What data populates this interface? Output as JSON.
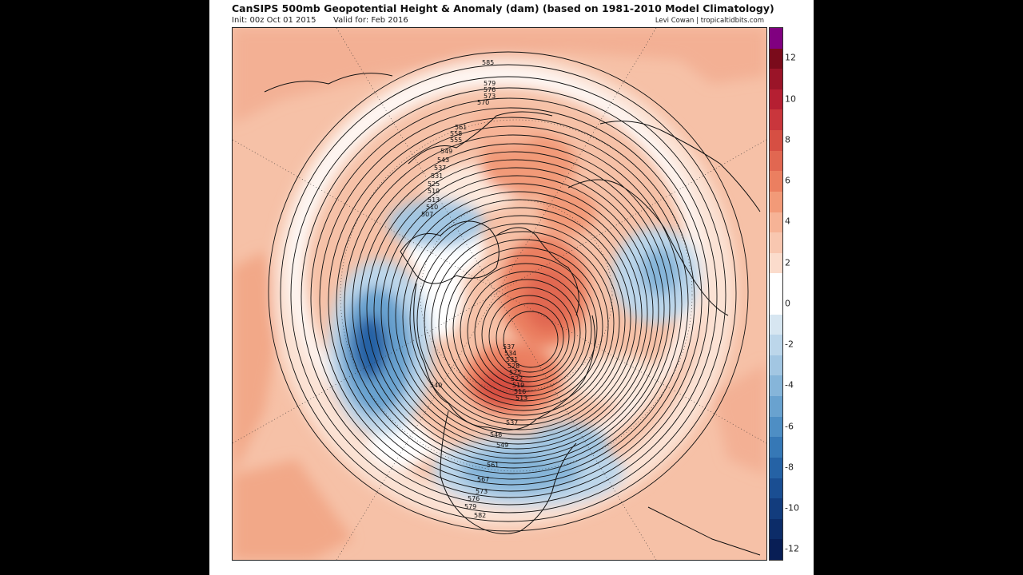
{
  "header": {
    "title": "CanSIPS 500mb Geopotential Height & Anomaly (dam) (based on 1981-2010 Model Climatology)",
    "init": "Init: 00z Oct 01 2015",
    "valid": "Valid for: Feb 2016",
    "credit": "Levi Cowan | tropicaltidbits.com"
  },
  "colorbar": {
    "units": "dam",
    "segments": [
      {
        "value": 13,
        "color": "#800080"
      },
      {
        "value": 12,
        "color": "#7a0b1b"
      },
      {
        "value": 11,
        "color": "#9a1428"
      },
      {
        "value": 10,
        "color": "#b51f32"
      },
      {
        "value": 9,
        "color": "#c9363c"
      },
      {
        "value": 8,
        "color": "#d64f43"
      },
      {
        "value": 7,
        "color": "#e16751"
      },
      {
        "value": 6,
        "color": "#eb7f60"
      },
      {
        "value": 5,
        "color": "#f29a78"
      },
      {
        "value": 4,
        "color": "#f6b396"
      },
      {
        "value": 3,
        "color": "#f8c7b0"
      },
      {
        "value": 2,
        "color": "#fbdccc"
      },
      {
        "value": 1,
        "color": "#ffffff"
      },
      {
        "value": 0,
        "color": "#ffffff"
      },
      {
        "value": -1,
        "color": "#d7e6f1"
      },
      {
        "value": -2,
        "color": "#bcd6ea"
      },
      {
        "value": -3,
        "color": "#a2c6e2"
      },
      {
        "value": -4,
        "color": "#86b5d9"
      },
      {
        "value": -5,
        "color": "#69a2cf"
      },
      {
        "value": -6,
        "color": "#4e8ec4"
      },
      {
        "value": -7,
        "color": "#3678b6"
      },
      {
        "value": -8,
        "color": "#2562a5"
      },
      {
        "value": -9,
        "color": "#1a4e92"
      },
      {
        "value": -10,
        "color": "#123c7d"
      },
      {
        "value": -11,
        "color": "#0c2c68"
      },
      {
        "value": -12,
        "color": "#081e55"
      }
    ],
    "labels": [
      "12",
      "10",
      "8",
      "6",
      "4",
      "2",
      "0",
      "-2",
      "-4",
      "-6",
      "-8",
      "-10",
      "-12"
    ]
  },
  "contour_labels": {
    "upper": [
      "585",
      "579",
      "576",
      "573",
      "570",
      "561",
      "558",
      "555",
      "549",
      "543",
      "537",
      "531",
      "525",
      "519",
      "513",
      "510",
      "507"
    ],
    "center": [
      "540",
      "537",
      "534",
      "531",
      "528",
      "525",
      "522",
      "519",
      "516",
      "513"
    ],
    "south": [
      "537",
      "546",
      "549",
      "561",
      "567",
      "573",
      "576",
      "579",
      "582"
    ]
  }
}
